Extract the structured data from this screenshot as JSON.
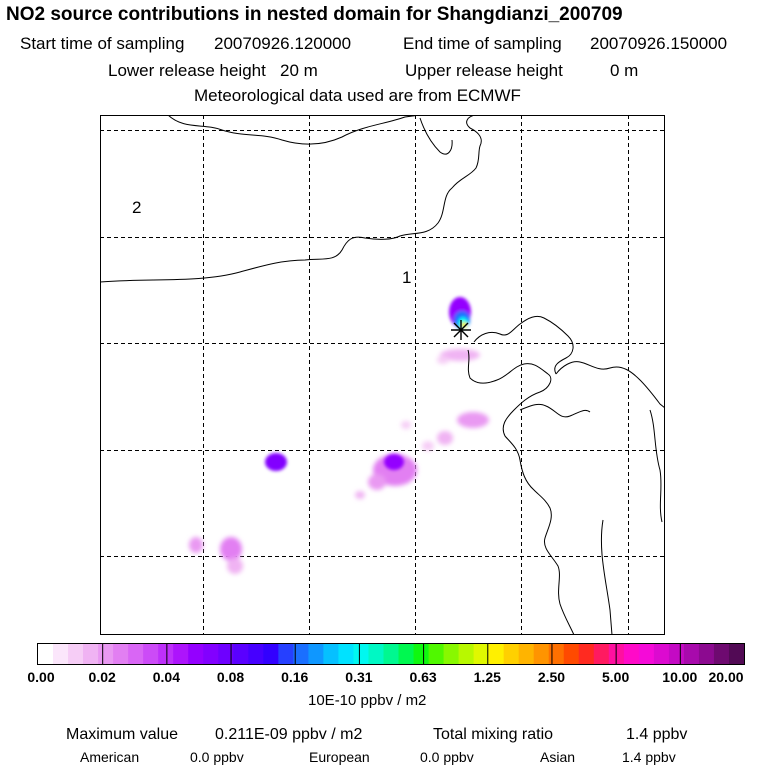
{
  "header": {
    "title": "NO2 source contributions in nested domain for Shangdianzi_200709",
    "start_label": "Start time of sampling",
    "start_value": "20070926.120000",
    "end_label": "End time of sampling",
    "end_value": "20070926.150000",
    "lower_label": "Lower release height",
    "lower_value": "20 m",
    "upper_label": "Upper release height",
    "upper_value": "0 m",
    "met": "Meteorological data used are from ECMWF"
  },
  "map": {
    "domain_labels": [
      "2",
      "1"
    ],
    "station_marker": "asterisk-icon",
    "gridlines": "dashed"
  },
  "colorbar": {
    "tick_labels": [
      "0.00",
      "0.02",
      "0.04",
      "0.08",
      "0.16",
      "0.31",
      "0.63",
      "1.25",
      "2.50",
      "5.00",
      "10.00",
      "20.00"
    ],
    "unit": "10E-10 ppbv / m2",
    "colors": [
      "#ffffff",
      "#fbe6fb",
      "#f6cdf6",
      "#f0b3f3",
      "#e999f2",
      "#e27ff2",
      "#d966f5",
      "#cc4bf7",
      "#be30fa",
      "#ad14fc",
      "#9400ff",
      "#8200ff",
      "#6e00ff",
      "#5a00ff",
      "#4600ff",
      "#3200ff",
      "#2640ff",
      "#1a6fff",
      "#0f97ff",
      "#06c0ff",
      "#00e2ff",
      "#00f8f0",
      "#00f8c4",
      "#00f890",
      "#00f850",
      "#10f810",
      "#50f800",
      "#88f800",
      "#b8f800",
      "#e0f800",
      "#fff000",
      "#ffd000",
      "#ffb400",
      "#ff9400",
      "#ff7000",
      "#ff4a00",
      "#ff2a20",
      "#ff1a60",
      "#ff10a0",
      "#ff0ac8",
      "#f50ad8",
      "#dc0ad0",
      "#c40ac4",
      "#a80aac",
      "#8c0a90",
      "#6e0a70",
      "#520a55"
    ]
  },
  "footer": {
    "max_label": "Maximum value",
    "max_value": "0.211E-09 ppbv / m2",
    "total_label": "Total mixing ratio",
    "total_value": "1.4 ppbv",
    "american_label": "American",
    "american_value": "0.0 ppbv",
    "european_label": "European",
    "european_value": "0.0 ppbv",
    "asian_label": "Asian",
    "asian_value": "1.4 ppbv"
  }
}
